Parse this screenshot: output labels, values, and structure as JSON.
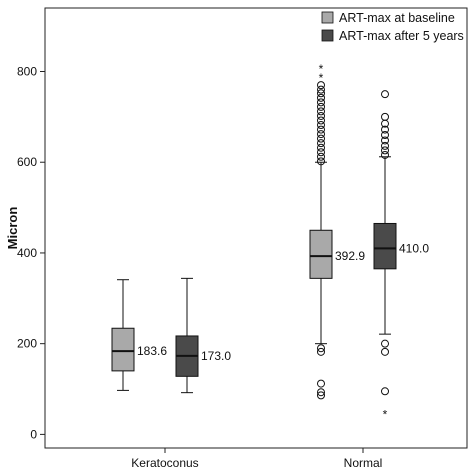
{
  "chart_data": {
    "type": "box",
    "ylabel": "Micron",
    "xlabel": "",
    "ylim": [
      -30,
      940
    ],
    "yticks": [
      0,
      200,
      400,
      600,
      800
    ],
    "grid": false,
    "legend_position": "top-right",
    "categories": [
      "Keratoconus",
      "Normal"
    ],
    "series": [
      {
        "name": "ART-max at baseline",
        "color": "#a9a9a9",
        "boxes": [
          {
            "category": "Keratoconus",
            "whisker_low": 97,
            "q1": 140,
            "median": 183.6,
            "q3": 234,
            "whisker_high": 341,
            "median_label": "183.6",
            "outliers": [],
            "extremes": []
          },
          {
            "category": "Normal",
            "whisker_low": 200,
            "q1": 344,
            "median": 392.9,
            "q3": 450,
            "whisker_high": 600,
            "median_label": "392.9",
            "outliers": [
              190,
              182,
              112,
              93,
              86,
              602,
              612,
              622,
              632,
              642,
              652,
              662,
              672,
              682,
              692,
              702,
              712,
              722,
              732,
              742,
              752,
              760,
              770
            ],
            "extremes": [
              790,
              810
            ]
          }
        ]
      },
      {
        "name": "ART-max after 5 years",
        "color": "#4a4a4a",
        "boxes": [
          {
            "category": "Keratoconus",
            "whisker_low": 92,
            "q1": 128,
            "median": 173.0,
            "q3": 217,
            "whisker_high": 344,
            "median_label": "173.0",
            "outliers": [],
            "extremes": []
          },
          {
            "category": "Normal",
            "whisker_low": 221,
            "q1": 365,
            "median": 410.0,
            "q3": 465,
            "whisker_high": 612,
            "median_label": "410.0",
            "outliers": [
              200,
              182,
              95,
              616,
              626,
              636,
              648,
              660,
              672,
              685,
              700,
              750
            ],
            "extremes": [
              48
            ]
          }
        ]
      }
    ]
  }
}
